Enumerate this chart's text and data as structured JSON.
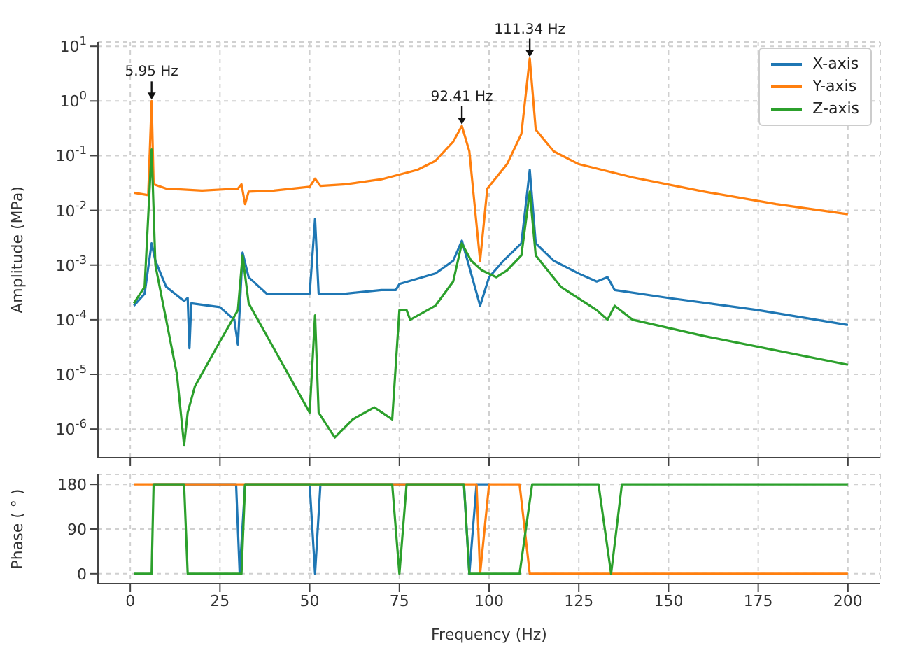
{
  "chart_data": [
    {
      "type": "line",
      "ylabel": "Amplitude (MPa)",
      "log": "y",
      "xlim": [
        -9,
        209
      ],
      "xticks": [
        0,
        25,
        50,
        75,
        100,
        125,
        150,
        175,
        200
      ],
      "ylim": [
        3e-07,
        12
      ],
      "yticks": [
        {
          "value": 1e-06,
          "label": "10$^{-6}$"
        },
        {
          "value": 1e-05,
          "label": "10$^{-5}$"
        },
        {
          "value": 0.0001,
          "label": "10$^{-4}$"
        },
        {
          "value": 0.001,
          "label": "10$^{-3}$"
        },
        {
          "value": 0.01,
          "label": "10$^{-2}$"
        },
        {
          "value": 0.1,
          "label": "10$^{-1}$"
        },
        {
          "value": 1,
          "label": "10$^{0}$"
        },
        {
          "value": 10,
          "label": "10$^{1}$"
        }
      ],
      "tick_labels": "y",
      "grid": true,
      "legend": "top right",
      "annotations": [
        {
          "text": "5.95 Hz",
          "x": 5.95,
          "y": 1.0
        },
        {
          "text": "92.41 Hz",
          "x": 92.41,
          "y": 0.35
        },
        {
          "text": "111.34 Hz",
          "x": 111.34,
          "y": 6
        }
      ],
      "series": [
        {
          "name": "X-axis",
          "color": "#1f77b4",
          "x": [
            1,
            4,
            5.95,
            7,
            10,
            15,
            16,
            16.5,
            17,
            25,
            29,
            30,
            31.3,
            33,
            38,
            50,
            51.5,
            52.5,
            60,
            70,
            74,
            75,
            85,
            90,
            92.41,
            94,
            97.5,
            100,
            104,
            109,
            111.34,
            113,
            118,
            125,
            130,
            133,
            135,
            150,
            175,
            200
          ],
          "values": [
            0.00018,
            0.0003,
            0.0025,
            0.0012,
            0.0004,
            0.00022,
            0.00025,
            3e-05,
            0.0002,
            0.00017,
            0.0001,
            3.5e-05,
            0.0017,
            0.0006,
            0.0003,
            0.0003,
            0.007,
            0.0003,
            0.0003,
            0.00035,
            0.00035,
            0.00045,
            0.0007,
            0.0012,
            0.0028,
            0.0012,
            0.00018,
            0.0006,
            0.0012,
            0.0025,
            0.055,
            0.0025,
            0.0012,
            0.0007,
            0.0005,
            0.0006,
            0.00035,
            0.00025,
            0.00015,
            8e-05
          ]
        },
        {
          "name": "Y-axis",
          "color": "#ff7f0e",
          "x": [
            1,
            5,
            5.95,
            6.5,
            10,
            20,
            30,
            31,
            32,
            33,
            40,
            50,
            51.5,
            53,
            60,
            70,
            80,
            85,
            90,
            92.41,
            94.5,
            97.5,
            99.5,
            105,
            109,
            111.34,
            113,
            118,
            125,
            140,
            160,
            180,
            200
          ],
          "values": [
            0.021,
            0.019,
            1.0,
            0.03,
            0.025,
            0.023,
            0.025,
            0.03,
            0.013,
            0.022,
            0.023,
            0.027,
            0.038,
            0.028,
            0.03,
            0.037,
            0.055,
            0.08,
            0.18,
            0.35,
            0.12,
            0.0012,
            0.025,
            0.07,
            0.25,
            6,
            0.3,
            0.12,
            0.07,
            0.04,
            0.022,
            0.013,
            0.0085
          ]
        },
        {
          "name": "Z-axis",
          "color": "#2ca02c",
          "x": [
            1,
            4,
            5.95,
            7,
            10,
            13,
            15,
            16,
            18,
            25,
            30,
            31.3,
            33,
            40,
            50,
            51.5,
            52.5,
            57,
            62,
            68,
            73,
            75,
            77,
            78,
            85,
            90,
            92.41,
            95,
            98,
            102,
            105,
            109,
            111.34,
            113,
            120,
            130,
            133,
            135,
            140,
            160,
            200
          ],
          "values": [
            0.0002,
            0.0004,
            0.13,
            0.001,
            0.0001,
            1e-05,
            5e-07,
            2e-06,
            6e-06,
            4e-05,
            0.00015,
            0.0015,
            0.0002,
            3e-05,
            2e-06,
            0.00012,
            2e-06,
            7e-07,
            1.5e-06,
            2.5e-06,
            1.5e-06,
            0.00015,
            0.00015,
            0.0001,
            0.00018,
            0.0005,
            0.0025,
            0.0012,
            0.0008,
            0.0006,
            0.0008,
            0.0015,
            0.022,
            0.0015,
            0.0004,
            0.00015,
            0.0001,
            0.00018,
            0.0001,
            5e-05,
            1.5e-05
          ]
        }
      ]
    },
    {
      "type": "line",
      "xlabel": "Frequency (Hz)",
      "ylabel": "Phase ( ° )",
      "xlim": [
        -9,
        209
      ],
      "xticks": [
        0,
        25,
        50,
        75,
        100,
        125,
        150,
        175,
        200
      ],
      "ylim": [
        -20,
        200
      ],
      "yticks": [
        0,
        90,
        180
      ],
      "grid": true,
      "series": [
        {
          "color": "#1f77b4",
          "x": [
            6.5,
            29.5,
            30.5,
            32,
            50,
            51.5,
            53,
            93,
            94.5,
            96.5,
            100
          ],
          "values": [
            180,
            180,
            0,
            180,
            180,
            0,
            180,
            180,
            0,
            180,
            180
          ]
        },
        {
          "color": "#ff7f0e",
          "x": [
            1,
            96.5,
            97.5,
            100,
            108.5,
            111.34,
            200
          ],
          "values": [
            180,
            180,
            0,
            180,
            180,
            0,
            0
          ]
        },
        {
          "color": "#2ca02c",
          "x": [
            1,
            5.95,
            6.5,
            15,
            16,
            31,
            32,
            73,
            75,
            77,
            93,
            94.5,
            108.5,
            112,
            130.5,
            134,
            137,
            200
          ],
          "values": [
            0,
            0,
            180,
            180,
            0,
            0,
            180,
            180,
            0,
            180,
            180,
            0,
            0,
            180,
            180,
            0,
            180,
            180
          ]
        }
      ]
    }
  ]
}
